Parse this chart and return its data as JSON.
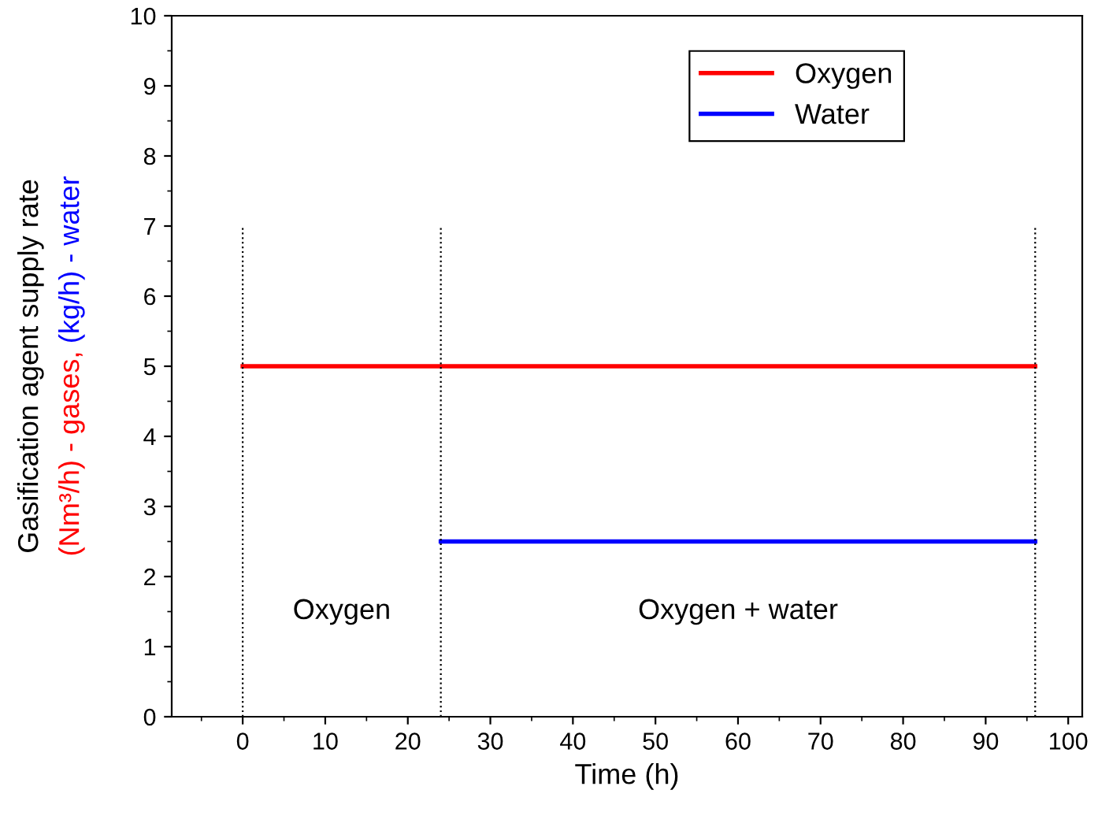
{
  "chart_data": {
    "type": "line",
    "xlabel": "Time (h)",
    "ylabel": "Gasification agent supply rate\n(Nm³/h) - gases, (kg/h) - water",
    "xlim": [
      -8.6,
      101.7
    ],
    "xticks": [
      0,
      10,
      20,
      30,
      40,
      50,
      60,
      70,
      80,
      90,
      100
    ],
    "ylim": [
      0,
      10
    ],
    "yticks": [
      0,
      1,
      2,
      3,
      4,
      5,
      6,
      7,
      8,
      9,
      10
    ],
    "series": [
      {
        "name": "Oxygen",
        "color": "#ff0000",
        "x": [
          0,
          96
        ],
        "values": [
          5,
          5
        ]
      },
      {
        "name": "Water",
        "color": "#0000ff",
        "x": [
          24,
          96
        ],
        "values": [
          2.5,
          2.5
        ]
      },
      {
        "color": "#000000",
        "x": [
          0,
          0
        ],
        "values": [
          0,
          7
        ],
        "line_style": "dotted"
      },
      {
        "color": "#000000",
        "x": [
          24,
          24
        ],
        "values": [
          0,
          7
        ],
        "line_style": "dotted"
      },
      {
        "color": "#000000",
        "x": [
          96,
          96
        ],
        "values": [
          0,
          7
        ],
        "line_style": "dotted"
      }
    ],
    "annotations": [
      "Oxygen",
      "Oxygen + water"
    ],
    "legend": "top right",
    "grid": false
  }
}
